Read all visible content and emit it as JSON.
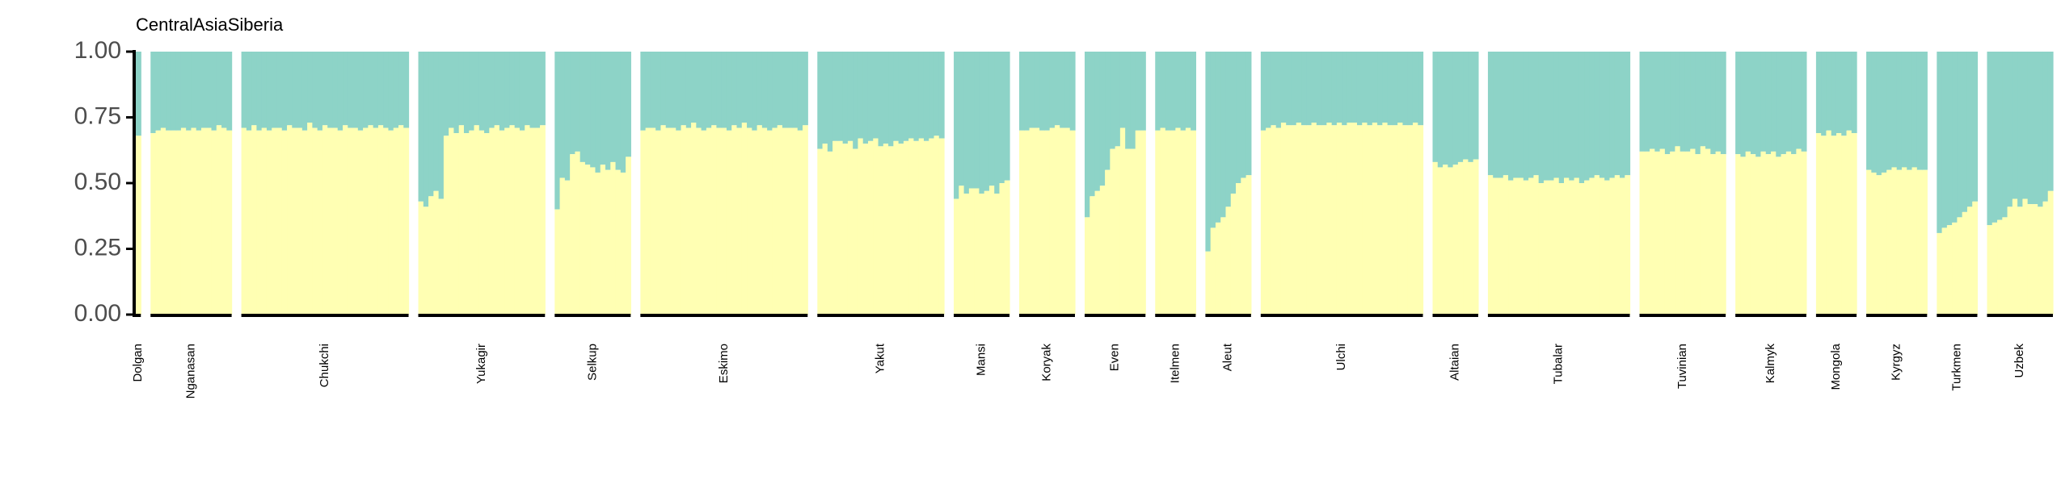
{
  "chart_data": {
    "type": "bar",
    "stacked": true,
    "title": "CentralAsiaSiberia",
    "xlabel": "",
    "ylabel": "",
    "ylim": [
      0,
      1
    ],
    "y_ticks": [
      "0.00",
      "0.25",
      "0.50",
      "0.75",
      "1.00"
    ],
    "y_tick_values": [
      0,
      0.25,
      0.5,
      0.75,
      1
    ],
    "grid": false,
    "legend": "none",
    "colors": {
      "component_1": "#FFFFB3",
      "component_2": "#8DD3C7",
      "background": "#FFFFFF",
      "axis": "#000000"
    },
    "groups": [
      {
        "name": "Dolgan",
        "values": [
          0.68
        ]
      },
      {
        "name": "Nganasan",
        "values": [
          0.69,
          0.7,
          0.71,
          0.7,
          0.7,
          0.7,
          0.71,
          0.7,
          0.71,
          0.7,
          0.71,
          0.71,
          0.7,
          0.72,
          0.71,
          0.7
        ]
      },
      {
        "name": "Chukchi",
        "values": [
          0.71,
          0.7,
          0.72,
          0.7,
          0.71,
          0.7,
          0.71,
          0.71,
          0.7,
          0.72,
          0.71,
          0.71,
          0.7,
          0.73,
          0.71,
          0.7,
          0.72,
          0.71,
          0.71,
          0.7,
          0.72,
          0.71,
          0.71,
          0.7,
          0.71,
          0.72,
          0.71,
          0.72,
          0.71,
          0.7,
          0.71,
          0.72,
          0.71
        ]
      },
      {
        "name": "Yukagir",
        "values": [
          0.43,
          0.41,
          0.45,
          0.47,
          0.44,
          0.68,
          0.71,
          0.69,
          0.72,
          0.69,
          0.7,
          0.72,
          0.7,
          0.69,
          0.71,
          0.72,
          0.7,
          0.71,
          0.72,
          0.71,
          0.7,
          0.72,
          0.71,
          0.71,
          0.72
        ]
      },
      {
        "name": "Selkup",
        "values": [
          0.4,
          0.52,
          0.51,
          0.61,
          0.62,
          0.58,
          0.57,
          0.56,
          0.54,
          0.57,
          0.55,
          0.58,
          0.55,
          0.54,
          0.6
        ]
      },
      {
        "name": "Eskimo",
        "values": [
          0.7,
          0.71,
          0.71,
          0.7,
          0.72,
          0.71,
          0.71,
          0.7,
          0.72,
          0.71,
          0.73,
          0.71,
          0.7,
          0.71,
          0.72,
          0.71,
          0.71,
          0.7,
          0.72,
          0.71,
          0.73,
          0.71,
          0.7,
          0.72,
          0.71,
          0.7,
          0.71,
          0.72,
          0.71,
          0.71,
          0.71,
          0.7,
          0.72
        ]
      },
      {
        "name": "Yakut",
        "values": [
          0.63,
          0.65,
          0.62,
          0.66,
          0.66,
          0.65,
          0.66,
          0.63,
          0.67,
          0.65,
          0.66,
          0.67,
          0.64,
          0.65,
          0.64,
          0.66,
          0.65,
          0.66,
          0.67,
          0.66,
          0.67,
          0.66,
          0.67,
          0.68,
          0.67
        ]
      },
      {
        "name": "Mansi",
        "values": [
          0.44,
          0.49,
          0.46,
          0.48,
          0.48,
          0.46,
          0.47,
          0.49,
          0.46,
          0.5,
          0.51
        ]
      },
      {
        "name": "Koryak",
        "values": [
          0.7,
          0.7,
          0.71,
          0.71,
          0.7,
          0.7,
          0.71,
          0.72,
          0.71,
          0.71,
          0.7
        ]
      },
      {
        "name": "Even",
        "values": [
          0.37,
          0.45,
          0.47,
          0.49,
          0.55,
          0.63,
          0.64,
          0.71,
          0.63,
          0.63,
          0.7,
          0.7
        ]
      },
      {
        "name": "Itelmen",
        "values": [
          0.7,
          0.71,
          0.7,
          0.7,
          0.71,
          0.7,
          0.71,
          0.7
        ]
      },
      {
        "name": "Aleut",
        "values": [
          0.24,
          0.33,
          0.35,
          0.37,
          0.41,
          0.46,
          0.5,
          0.52,
          0.53
        ]
      },
      {
        "name": "Ulchi",
        "values": [
          0.7,
          0.71,
          0.72,
          0.71,
          0.73,
          0.72,
          0.72,
          0.73,
          0.72,
          0.72,
          0.73,
          0.72,
          0.72,
          0.73,
          0.72,
          0.73,
          0.72,
          0.73,
          0.73,
          0.72,
          0.73,
          0.72,
          0.73,
          0.72,
          0.73,
          0.72,
          0.72,
          0.73,
          0.72,
          0.72,
          0.73,
          0.72
        ]
      },
      {
        "name": "Altaian",
        "values": [
          0.58,
          0.56,
          0.57,
          0.56,
          0.57,
          0.58,
          0.59,
          0.58,
          0.59
        ]
      },
      {
        "name": "Tubalar",
        "values": [
          0.53,
          0.52,
          0.52,
          0.53,
          0.51,
          0.52,
          0.52,
          0.51,
          0.52,
          0.53,
          0.5,
          0.51,
          0.51,
          0.52,
          0.5,
          0.52,
          0.51,
          0.52,
          0.5,
          0.51,
          0.52,
          0.53,
          0.52,
          0.51,
          0.52,
          0.53,
          0.52,
          0.53
        ]
      },
      {
        "name": "Tuvinian",
        "values": [
          0.62,
          0.62,
          0.63,
          0.62,
          0.63,
          0.61,
          0.62,
          0.64,
          0.62,
          0.62,
          0.63,
          0.61,
          0.64,
          0.63,
          0.61,
          0.62,
          0.61
        ]
      },
      {
        "name": "Kalmyk",
        "values": [
          0.61,
          0.6,
          0.62,
          0.61,
          0.6,
          0.62,
          0.61,
          0.62,
          0.6,
          0.61,
          0.62,
          0.61,
          0.63,
          0.62
        ]
      },
      {
        "name": "Mongola",
        "values": [
          0.69,
          0.68,
          0.7,
          0.68,
          0.69,
          0.68,
          0.7,
          0.69
        ]
      },
      {
        "name": "Kyrgyz",
        "values": [
          0.55,
          0.54,
          0.53,
          0.54,
          0.55,
          0.56,
          0.55,
          0.56,
          0.55,
          0.56,
          0.55,
          0.55
        ]
      },
      {
        "name": "Turkmen",
        "values": [
          0.31,
          0.33,
          0.34,
          0.35,
          0.37,
          0.39,
          0.41,
          0.43
        ]
      },
      {
        "name": "Uzbek",
        "values": [
          0.34,
          0.35,
          0.36,
          0.37,
          0.41,
          0.44,
          0.41,
          0.44,
          0.42,
          0.42,
          0.41,
          0.43,
          0.47
        ]
      }
    ]
  }
}
